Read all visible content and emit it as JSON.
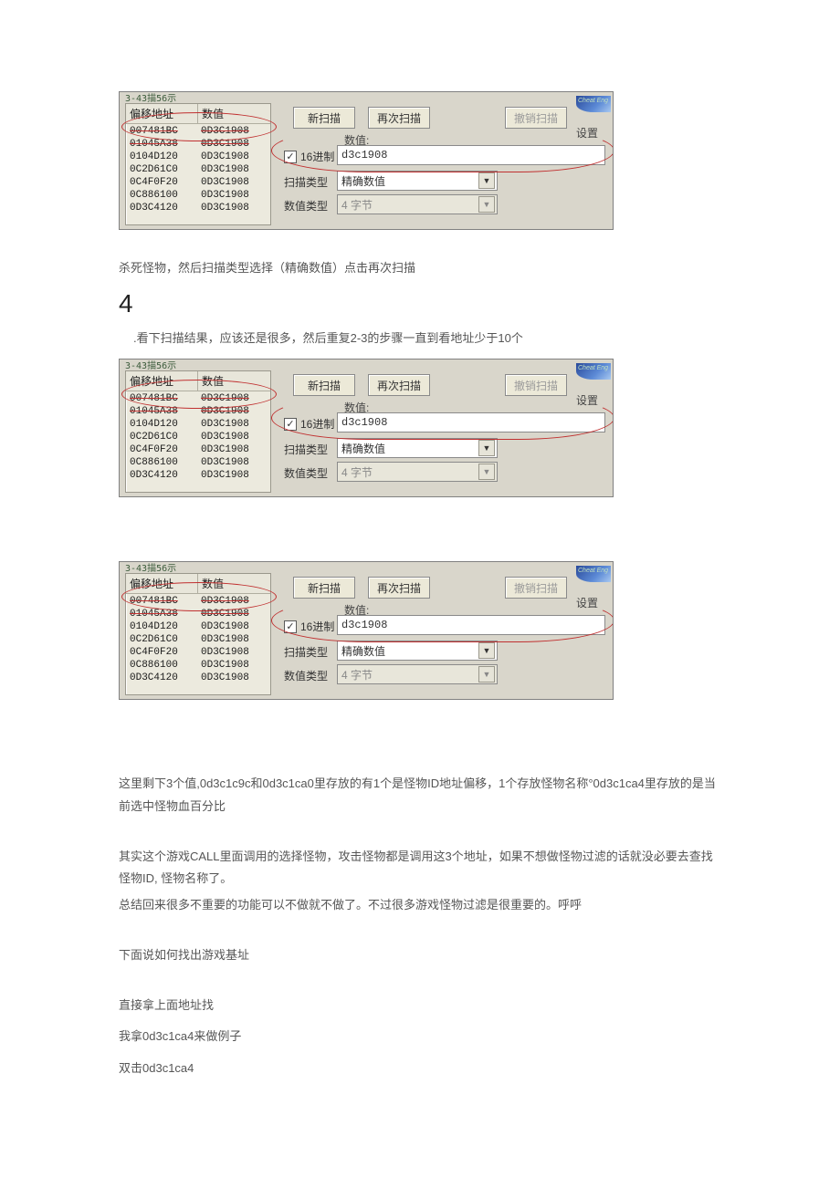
{
  "panel": {
    "tab_label": "3-43描56示",
    "header_addr": "偏移地址",
    "header_val": "数值",
    "rows": [
      {
        "addr": "007481BC",
        "val": "0D3C1908",
        "struck": true
      },
      {
        "addr": "01045A38",
        "val": "0D3C1908",
        "struck": true
      },
      {
        "addr": "0104D120",
        "val": "0D3C1908",
        "struck": false
      },
      {
        "addr": "0C2D61C0",
        "val": "0D3C1908",
        "struck": false
      },
      {
        "addr": "0C4F0F20",
        "val": "0D3C1908",
        "struck": false
      },
      {
        "addr": "0C886100",
        "val": "0D3C1908",
        "struck": false
      },
      {
        "addr": "0D3C4120",
        "val": "0D3C1908",
        "struck": false
      }
    ],
    "btn_new": "新扫描",
    "btn_next": "再次扫描",
    "btn_undo": "撤销扫描",
    "settings": "设置",
    "value_label": "数值:",
    "hex_label": "16进制",
    "hex_value": "d3c1908",
    "scan_type_label": "扫描类型",
    "scan_type_value": "精确数值",
    "value_type_label": "数值类型",
    "value_type_value": "4 字节",
    "logo_text": "Cheat Eng"
  },
  "text": {
    "p1": "杀死怪物，然后扫描类型选择（精确数值）点击再次扫描",
    "big4": "4",
    "p2": ".看下扫描结果，应该还是很多，然后重复2-3的步骤一直到看地址少于10个",
    "p3": "这里剩下3个值,0d3c1c9c和0d3c1ca0里存放的有1个是怪物ID地址偏移，1个存放怪物名称°0d3c1ca4里存放的是当前选中怪物血百分比",
    "p4": "其实这个游戏CALL里面调用的选择怪物，攻击怪物都是调用这3个地址，如果不想做怪物过滤的话就没必要去查找怪物ID, 怪物名称了。",
    "p5": "总结回来很多不重要的功能可以不做就不做了。不过很多游戏怪物过滤是很重要的。呼呼",
    "p6": "下面说如何找出游戏基址",
    "p7": "直接拿上面地址找",
    "p8": "我拿0d3c1ca4来做例子",
    "p9": "双击0d3c1ca4"
  }
}
